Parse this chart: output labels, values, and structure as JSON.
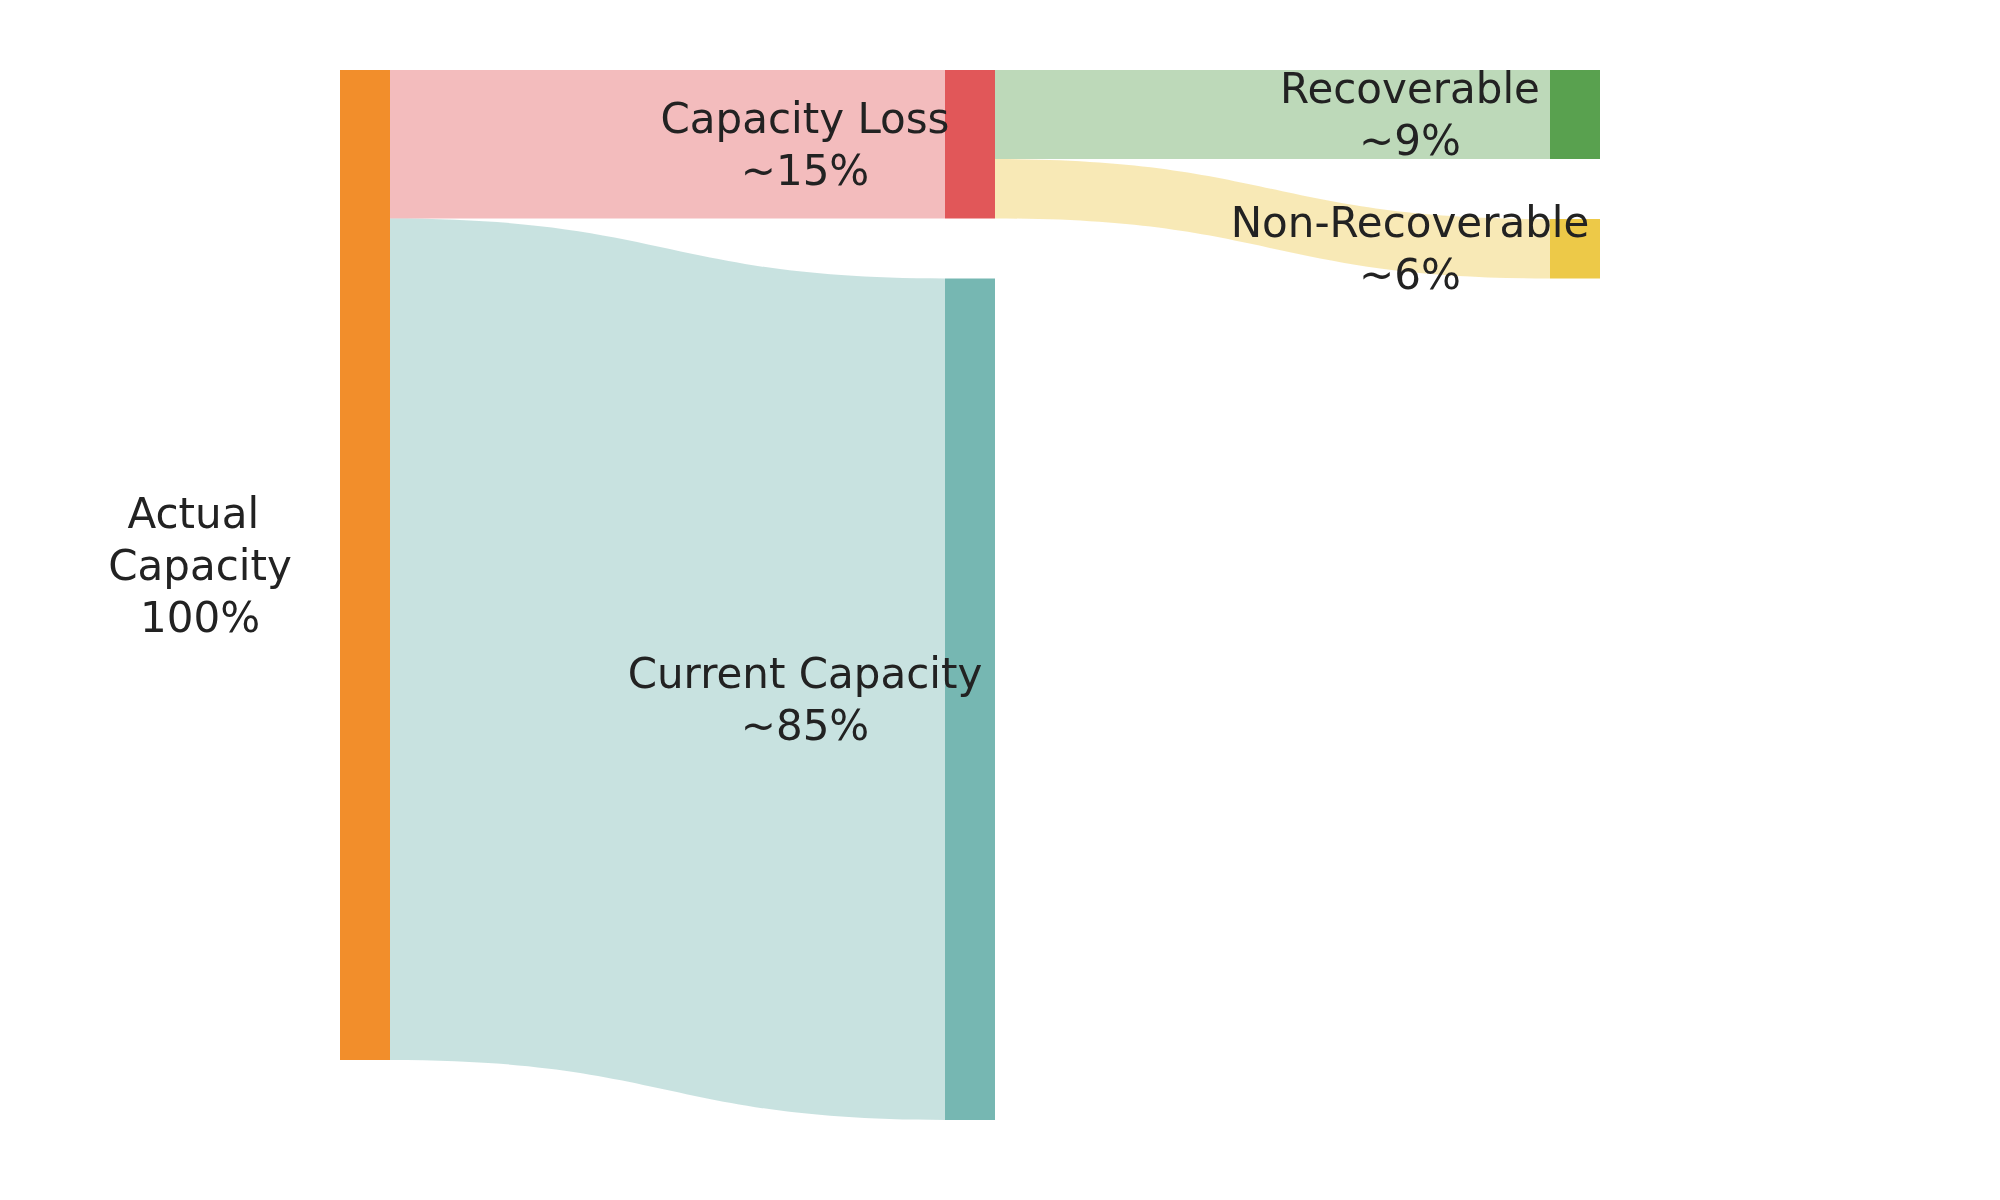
{
  "chart_data": {
    "type": "other",
    "categories": [
      "Actual Capacity",
      "Capacity Loss",
      "Current Capacity",
      "Recoverable",
      "Non-Recoverable"
    ],
    "values": [
      100,
      15,
      85,
      9,
      6
    ],
    "value_labels": [
      "100%",
      "~15%",
      "~85%",
      "~9%",
      "~6%"
    ],
    "colors": [
      "#f28e2b",
      "#e15759",
      "#76b7b2",
      "#59a14f",
      "#edc948"
    ]
  }
}
